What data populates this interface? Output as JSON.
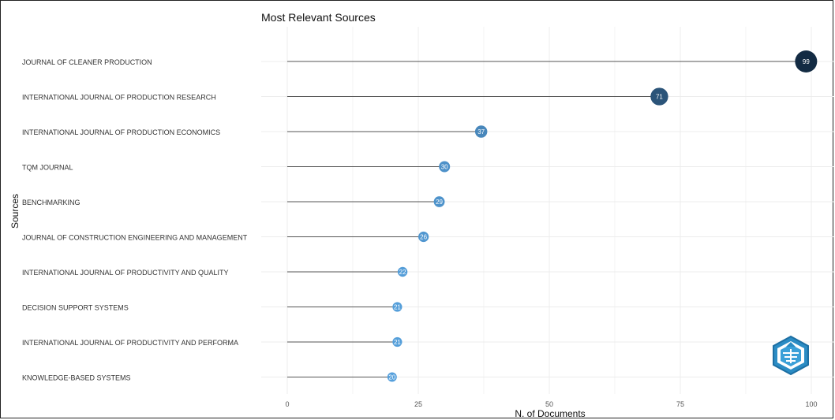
{
  "chart_data": {
    "type": "lollipop",
    "title": "Most Relevant Sources",
    "xlabel": "N. of Documents",
    "ylabel": "Sources",
    "xlim": [
      0,
      100
    ],
    "xticks": [
      0,
      25,
      50,
      75,
      100
    ],
    "grid": true,
    "categories": [
      "JOURNAL OF CLEANER PRODUCTION",
      "INTERNATIONAL JOURNAL OF PRODUCTION RESEARCH",
      "INTERNATIONAL JOURNAL OF PRODUCTION ECONOMICS",
      "TQM JOURNAL",
      "BENCHMARKING",
      "JOURNAL OF CONSTRUCTION ENGINEERING AND MANAGEMENT",
      "INTERNATIONAL JOURNAL OF PRODUCTIVITY AND QUALITY",
      "DECISION SUPPORT SYSTEMS",
      "INTERNATIONAL JOURNAL OF PRODUCTIVITY AND PERFORMA",
      "KNOWLEDGE-BASED SYSTEMS"
    ],
    "values": [
      99,
      71,
      37,
      30,
      29,
      26,
      22,
      21,
      21,
      20
    ],
    "colors": {
      "low": "#56a0dc",
      "high": "#132b43",
      "stem": "#555555",
      "grid": "#ececec"
    }
  }
}
